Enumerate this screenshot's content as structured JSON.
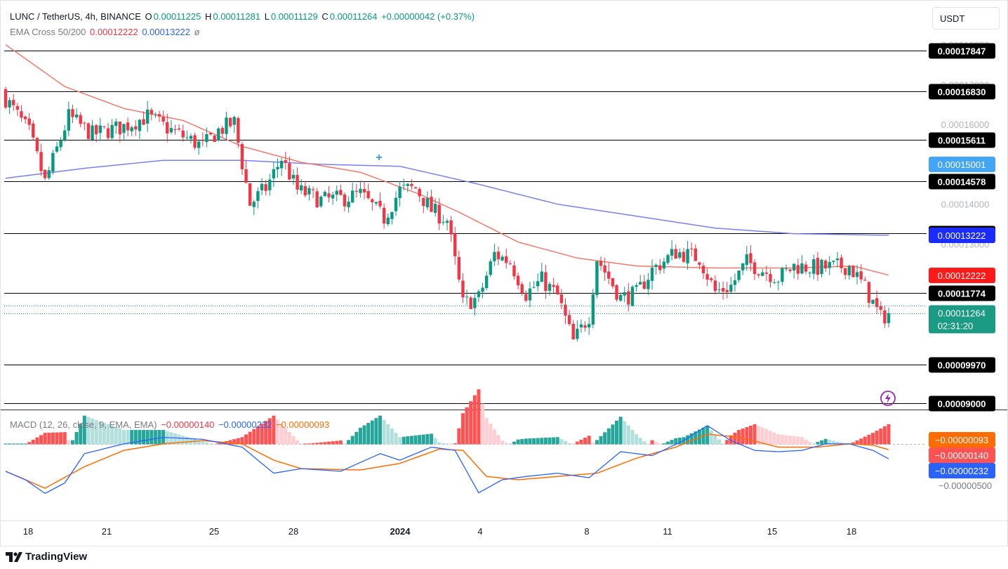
{
  "header": {
    "symbol": "LUNC / TetherUS, 4h, BINANCE",
    "o_label": "O",
    "o_value": "0.00011225",
    "h_label": "H",
    "h_value": "0.00011281",
    "l_label": "L",
    "l_value": "0.00011129",
    "c_label": "C",
    "c_value": "0.00011264",
    "change": "+0.00000042 (+0.37%)",
    "ema_name": "EMA Cross 50/200",
    "ema50_value": "0.00012222",
    "ema200_value": "0.00013222",
    "ema_eye": "ø"
  },
  "macd_header": {
    "name": "MACD (12, 26, close, 9, EMA, EMA)",
    "hist_value": "−0.00000140",
    "macd_value": "−0.00000232",
    "signal_value": "−0.00000093"
  },
  "currency_button": "USDT",
  "branding": "TradingView",
  "colors": {
    "up": "#089981",
    "down": "#f23645",
    "ema50": "#f23645",
    "ema200": "#2962ff",
    "macd": "#2962ff",
    "signal": "#ff6d00",
    "level_line": "#000000",
    "hist_up_strong": "#26a69a",
    "hist_up_weak": "#b2dfdb",
    "hist_down_strong": "#ff5252",
    "hist_down_weak": "#ffcdd2"
  },
  "chart_data": [
    {
      "type": "candlestick",
      "title": "LUNC / TetherUS, 4h, BINANCE",
      "x_tick_labels": [
        "18",
        "21",
        "25",
        "28",
        "2024",
        "4",
        "8",
        "11",
        "15",
        "18"
      ],
      "y_range": [
        8.85e-05,
        0.0001905
      ],
      "y_tick_labels": [
        "0.00018000",
        "0.00017000",
        "0.00016000",
        "0.00014000",
        "0.00013000"
      ],
      "grid": false,
      "horizontal_levels": [
        "0.00017847",
        "0.00016830",
        "0.00015611",
        "0.00014578",
        "0.00013273",
        "0.00011774",
        "0.00009970",
        "0.00009000"
      ],
      "ema_tags": [
        {
          "name": "EMA 200",
          "value": "0.00013222"
        },
        {
          "name": "EMA 50",
          "value": "0.00012222"
        }
      ],
      "crosshair_tag": "0.00015001",
      "last_price": "0.00011264",
      "countdown": "02:31:20",
      "series_key_points": {
        "candle_close": [
          [
            0,
            0.0001665
          ],
          [
            6,
            0.000158
          ],
          [
            10,
            0.0001455
          ],
          [
            16,
            0.000162
          ],
          [
            22,
            0.0001575
          ],
          [
            30,
            0.0001595
          ],
          [
            36,
            0.000162
          ],
          [
            42,
            0.0001585
          ],
          [
            50,
            0.0001545
          ],
          [
            54,
            0.0001585
          ],
          [
            58,
            0.0001605
          ],
          [
            62,
            0.00014
          ],
          [
            66,
            0.000144
          ],
          [
            70,
            0.0001515
          ],
          [
            74,
            0.0001435
          ],
          [
            80,
            0.000141
          ],
          [
            86,
            0.0001415
          ],
          [
            90,
            0.0001425
          ],
          [
            96,
            0.0001365
          ],
          [
            100,
            0.0001435
          ],
          [
            104,
            0.000144
          ],
          [
            108,
            0.0001385
          ],
          [
            112,
            0.000136
          ],
          [
            116,
            0.000115
          ],
          [
            120,
            0.0001165
          ],
          [
            124,
            0.0001275
          ],
          [
            128,
            0.0001255
          ],
          [
            132,
            0.0001175
          ],
          [
            136,
            0.000121
          ],
          [
            140,
            0.000117
          ],
          [
            144,
            0.0001055
          ],
          [
            148,
            0.000112
          ],
          [
            150,
            0.0001265
          ],
          [
            156,
            0.0001165
          ],
          [
            160,
            0.0001175
          ],
          [
            164,
            0.0001235
          ],
          [
            170,
            0.000128
          ],
          [
            176,
            0.0001265
          ],
          [
            180,
            0.000118
          ],
          [
            184,
            0.0001195
          ],
          [
            188,
            0.0001255
          ],
          [
            196,
            0.0001215
          ],
          [
            200,
            0.0001245
          ],
          [
            206,
            0.000124
          ],
          [
            214,
            0.0001245
          ],
          [
            218,
            0.000119
          ],
          [
            222,
            0.0001115
          ],
          [
            224,
            0.0001126
          ]
        ],
        "ema50": [
          [
            0,
            0.00018
          ],
          [
            15,
            0.0001695
          ],
          [
            30,
            0.000164
          ],
          [
            45,
            0.000161
          ],
          [
            60,
            0.0001545
          ],
          [
            75,
            0.0001505
          ],
          [
            90,
            0.000148
          ],
          [
            105,
            0.0001425
          ],
          [
            115,
            0.000138
          ],
          [
            130,
            0.0001305
          ],
          [
            145,
            0.0001265
          ],
          [
            160,
            0.0001245
          ],
          [
            180,
            0.000124
          ],
          [
            200,
            0.000124
          ],
          [
            215,
            0.0001245
          ],
          [
            224,
            0.0001222
          ]
        ],
        "ema200": [
          [
            0,
            0.0001465
          ],
          [
            20,
            0.000149
          ],
          [
            40,
            0.000151
          ],
          [
            60,
            0.000151
          ],
          [
            80,
            0.00015
          ],
          [
            100,
            0.0001495
          ],
          [
            120,
            0.000145
          ],
          [
            140,
            0.00014
          ],
          [
            160,
            0.000137
          ],
          [
            180,
            0.000134
          ],
          [
            200,
            0.0001326
          ],
          [
            224,
            0.0001322
          ]
        ]
      }
    },
    {
      "type": "macd",
      "title": "MACD (12, 26, close, 9, EMA, EMA)",
      "y_tick_labels": [
        "−0.00000500"
      ],
      "value_tags": [
        {
          "name": "Signal",
          "value": "−0.00000093"
        },
        {
          "name": "Histogram",
          "value": "−0.00000140"
        },
        {
          "name": "MACD",
          "value": "−0.00000232"
        }
      ],
      "series_key_points": {
        "macd": [
          [
            0,
            -4.2e-06
          ],
          [
            5,
            -5.5e-06
          ],
          [
            10,
            -7.6e-06
          ],
          [
            15,
            -6e-06
          ],
          [
            20,
            -1.5e-06
          ],
          [
            30,
            0
          ],
          [
            40,
            1e-06
          ],
          [
            50,
            7e-07
          ],
          [
            60,
            -5e-07
          ],
          [
            68,
            -4.5e-06
          ],
          [
            75,
            -3.8e-06
          ],
          [
            85,
            -4.2e-06
          ],
          [
            95,
            -1.5e-06
          ],
          [
            100,
            -2.5e-06
          ],
          [
            108,
            -5e-07
          ],
          [
            114,
            -1e-06
          ],
          [
            120,
            -7.5e-06
          ],
          [
            126,
            -5.5e-06
          ],
          [
            132,
            -5e-06
          ],
          [
            140,
            -4.5e-06
          ],
          [
            148,
            -5.2e-06
          ],
          [
            156,
            -1.2e-06
          ],
          [
            164,
            -1.8e-06
          ],
          [
            172,
            5e-07
          ],
          [
            178,
            2.8e-06
          ],
          [
            184,
            5e-07
          ],
          [
            190,
            -1e-06
          ],
          [
            196,
            -1.2e-06
          ],
          [
            202,
            -1e-06
          ],
          [
            208,
            0
          ],
          [
            214,
            0
          ],
          [
            220,
            -1e-06
          ],
          [
            224,
            -2.3e-06
          ]
        ],
        "signal": [
          [
            0,
            -4.2e-06
          ],
          [
            10,
            -6.8e-06
          ],
          [
            20,
            -3.5e-06
          ],
          [
            30,
            -1e-06
          ],
          [
            40,
            0
          ],
          [
            50,
            5e-07
          ],
          [
            60,
            0
          ],
          [
            68,
            -2.5e-06
          ],
          [
            75,
            -3.8e-06
          ],
          [
            90,
            -4e-06
          ],
          [
            100,
            -3e-06
          ],
          [
            110,
            -8e-07
          ],
          [
            116,
            -1e-06
          ],
          [
            122,
            -5e-06
          ],
          [
            130,
            -5.5e-06
          ],
          [
            140,
            -5e-06
          ],
          [
            150,
            -4.5e-06
          ],
          [
            160,
            -2.2e-06
          ],
          [
            170,
            -5e-07
          ],
          [
            178,
            1.5e-06
          ],
          [
            186,
            1e-06
          ],
          [
            196,
            -5e-07
          ],
          [
            206,
            -5e-07
          ],
          [
            214,
            0
          ],
          [
            220,
            -2e-07
          ],
          [
            224,
            -9e-07
          ]
        ]
      }
    }
  ]
}
